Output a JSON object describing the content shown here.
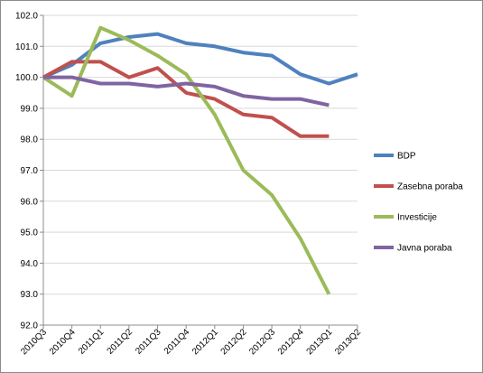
{
  "chart_data": {
    "type": "line",
    "title": "",
    "xlabel": "",
    "ylabel": "",
    "ylim": [
      92.0,
      102.0
    ],
    "yticks": [
      "92.0",
      "93.0",
      "94.0",
      "95.0",
      "96.0",
      "97.0",
      "98.0",
      "99.0",
      "100.0",
      "101.0",
      "102.0"
    ],
    "categories": [
      "2010Q3",
      "2010Q4",
      "2011Q1",
      "2011Q2",
      "2011Q3",
      "2011Q4",
      "2012Q1",
      "2012Q2",
      "2012Q3",
      "2012Q4",
      "2013Q1",
      "2013Q2"
    ],
    "grid": true,
    "legend_position": "right",
    "series": [
      {
        "name": "BDP",
        "color": "#4f81bd",
        "x": [
          0,
          1,
          2,
          3,
          4,
          5,
          6,
          7,
          8,
          9,
          10,
          11
        ],
        "values": [
          100.0,
          100.4,
          101.1,
          101.3,
          101.4,
          101.1,
          101.0,
          100.8,
          100.7,
          100.1,
          99.8,
          100.1
        ]
      },
      {
        "name": "Zasebna poraba",
        "color": "#c0504d",
        "x": [
          0,
          1,
          1.5,
          2,
          3,
          4,
          5,
          6,
          7,
          8,
          9,
          10
        ],
        "values": [
          100.0,
          100.5,
          100.5,
          100.5,
          100.0,
          100.3,
          99.5,
          99.3,
          98.8,
          98.7,
          98.1,
          98.1
        ]
      },
      {
        "name": "Investicije",
        "color": "#9bbb59",
        "x": [
          0,
          1,
          2,
          3,
          4,
          5,
          6,
          7,
          8,
          9,
          10
        ],
        "values": [
          100.0,
          99.4,
          101.6,
          101.2,
          100.7,
          100.1,
          98.8,
          97.0,
          96.2,
          94.8,
          93.0
        ]
      },
      {
        "name": "Javna poraba",
        "color": "#8064a2",
        "x": [
          0,
          1,
          2,
          3,
          4,
          5,
          6,
          7,
          8,
          9,
          10
        ],
        "values": [
          100.0,
          100.0,
          99.8,
          99.8,
          99.7,
          99.8,
          99.7,
          99.4,
          99.3,
          99.3,
          99.1
        ]
      }
    ]
  }
}
